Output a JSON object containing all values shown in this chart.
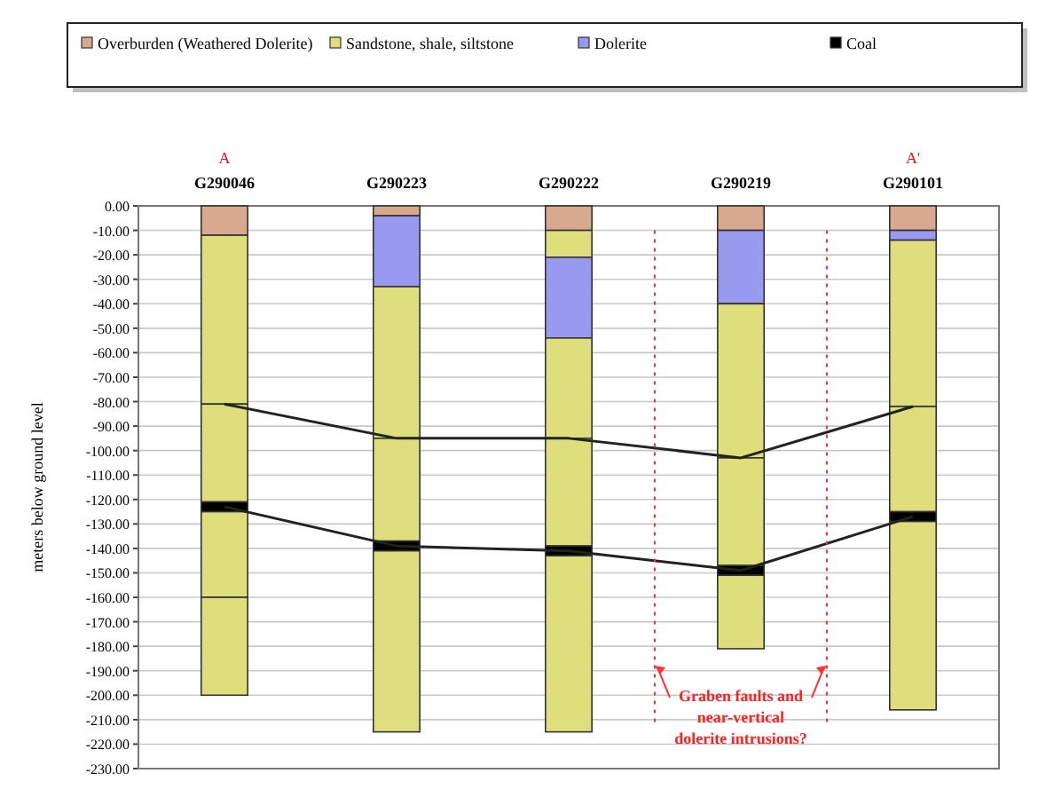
{
  "chart_data": {
    "type": "bar",
    "stacked": true,
    "ylabel": "meters below ground level",
    "categories": [
      "G290046",
      "G290223",
      "G290222",
      "G290219",
      "G290101"
    ],
    "ylim": [
      -230,
      0
    ],
    "yticks": [
      {
        "value": 0,
        "label": "0.00"
      },
      {
        "value": -10,
        "label": "-10.00"
      },
      {
        "value": -20,
        "label": "-20.00"
      },
      {
        "value": -30,
        "label": "-30.00"
      },
      {
        "value": -40,
        "label": "-40.00"
      },
      {
        "value": -50,
        "label": "-50.00"
      },
      {
        "value": -60,
        "label": "-60.00"
      },
      {
        "value": -70,
        "label": "-70.00"
      },
      {
        "value": -80,
        "label": "-80.00"
      },
      {
        "value": -90,
        "label": "-90.00"
      },
      {
        "value": -100,
        "label": "-100.00"
      },
      {
        "value": -110,
        "label": "-110.00"
      },
      {
        "value": -120,
        "label": "-120.00"
      },
      {
        "value": -130,
        "label": "-130.00"
      },
      {
        "value": -140,
        "label": "-140.00"
      },
      {
        "value": -150,
        "label": "-150.00"
      },
      {
        "value": -160,
        "label": "-160.00"
      },
      {
        "value": -170,
        "label": "-170.00"
      },
      {
        "value": -180,
        "label": "-180.00"
      },
      {
        "value": -190,
        "label": "-190.00"
      },
      {
        "value": -200,
        "label": "-200.00"
      },
      {
        "value": -210,
        "label": "-210.00"
      },
      {
        "value": -220,
        "label": "-220.00"
      },
      {
        "value": -230,
        "label": "-230.00"
      }
    ],
    "grid": "y",
    "legend": "top",
    "series": [
      {
        "name": "Overburden (Weathered Dolerite)",
        "color": "#d9a98f",
        "values": [
          -12,
          -4,
          -10,
          -10,
          -10
        ]
      },
      {
        "name": "Sandstone, shale, siltstone",
        "color": "#dede7c",
        "values": [
          null,
          null,
          -11,
          null,
          null
        ]
      },
      {
        "name": "Dolerite",
        "color": "#9999f0",
        "values": [
          null,
          -29,
          -33,
          -30,
          -4
        ]
      },
      {
        "color": "#dede7c",
        "values": [
          -69,
          -62,
          -41,
          -63,
          -68
        ]
      },
      {
        "color": "#dede7c",
        "values": [
          -40,
          -42,
          -44,
          -44,
          -43
        ]
      },
      {
        "name": "Coal",
        "color": "#000000",
        "values": [
          -4,
          -4,
          -4,
          -4,
          -4
        ]
      },
      {
        "color": "#dede7c",
        "values": [
          -35,
          -74,
          -72,
          -30,
          -77
        ]
      },
      {
        "color": "#dede7c",
        "values": [
          -40,
          null,
          null,
          null,
          null
        ]
      },
      {
        "type": "line",
        "color": "#222222",
        "values": [
          -81,
          -95,
          -95,
          -103,
          -82
        ]
      },
      {
        "type": "line",
        "color": "#222222",
        "values": [
          -123,
          -139,
          -141,
          -149,
          -127
        ]
      }
    ],
    "annotations": [
      "A",
      "A'",
      "Graben faults and near-vertical dolerite intrusions?"
    ]
  }
}
